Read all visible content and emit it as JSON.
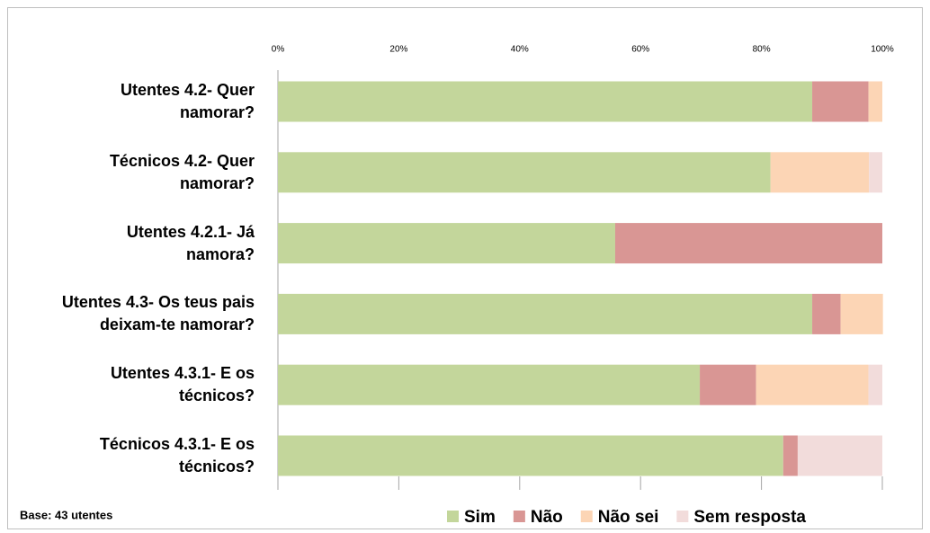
{
  "chart_data": {
    "type": "stacked_barh",
    "categories": [
      "Utentes 4.2- Quer\nnamorar?",
      "Técnicos 4.2- Quer\nnamorar?",
      "Utentes 4.2.1- Já\nnamora?",
      "Utentes 4.3- Os teus pais\ndeixam-te namorar?",
      "Utentes 4.3.1- E os\ntécnicos?",
      "Técnicos 4.3.1- E os\ntécnicos?"
    ],
    "series": [
      {
        "name": "Sim",
        "color": "#c3d69b",
        "values": [
          88.4,
          81.5,
          55.8,
          88.4,
          69.8,
          83.6
        ]
      },
      {
        "name": "Não",
        "color": "#d99694",
        "values": [
          9.3,
          0,
          44.2,
          4.7,
          9.3,
          2.4
        ]
      },
      {
        "name": "Não sei",
        "color": "#fcd5b5",
        "values": [
          2.3,
          16.3,
          0,
          7.0,
          18.6,
          0
        ]
      },
      {
        "name": "Sem resposta",
        "color": "#f2dcdb",
        "values": [
          0,
          2.2,
          0,
          0,
          2.3,
          14.0
        ]
      }
    ],
    "xlim": [
      0,
      100
    ],
    "xticks": [
      {
        "value": 0,
        "label": "0%"
      },
      {
        "value": 20,
        "label": "20%"
      },
      {
        "value": 40,
        "label": "40%"
      },
      {
        "value": 60,
        "label": "60%"
      },
      {
        "value": 80,
        "label": "80%"
      },
      {
        "value": 100,
        "label": "100%"
      }
    ],
    "note": "Base: 43 utentes",
    "legend": "bottom"
  }
}
